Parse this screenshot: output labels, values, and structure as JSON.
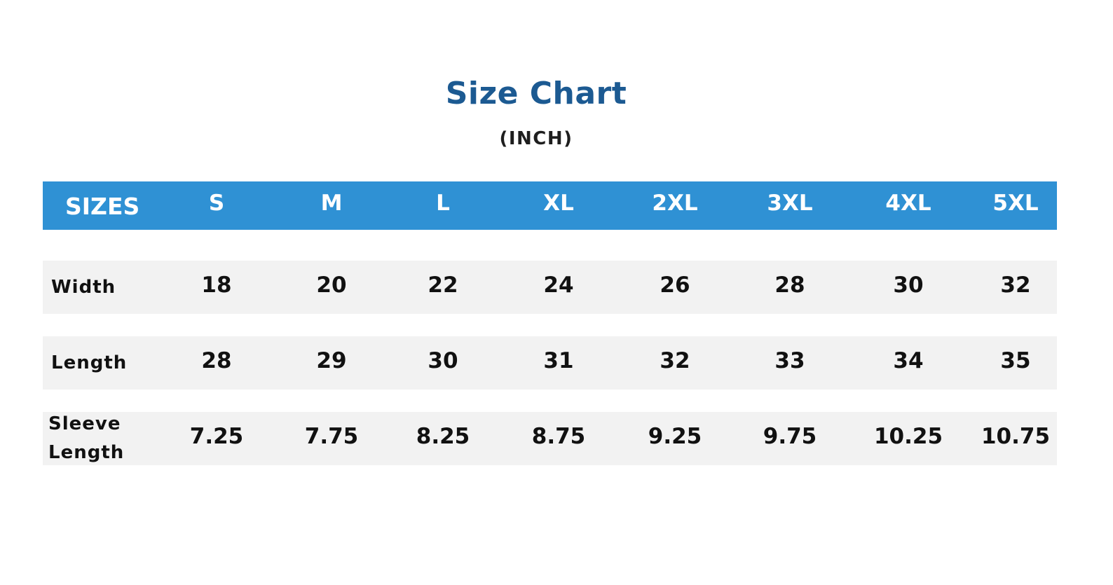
{
  "title": "Size Chart",
  "unit": "(INCH)",
  "colors": {
    "title": "#1c5a92",
    "header_bg": "#2f91d4",
    "header_text": "#ffffff",
    "row_bg": "#f2f2f2",
    "body_text": "#111111"
  },
  "table": {
    "header": [
      "SIZES",
      "S",
      "M",
      "L",
      "XL",
      "2XL",
      "3XL",
      "4XL",
      "5XL"
    ],
    "rows": [
      {
        "label": "Width",
        "values": [
          "18",
          "20",
          "22",
          "24",
          "26",
          "28",
          "30",
          "32"
        ]
      },
      {
        "label": "Length",
        "values": [
          "28",
          "29",
          "30",
          "31",
          "32",
          "33",
          "34",
          "35"
        ]
      },
      {
        "label": "Sleeve Length",
        "values": [
          "7.25",
          "7.75",
          "8.25",
          "8.75",
          "9.25",
          "9.75",
          "10.25",
          "10.75"
        ]
      }
    ]
  },
  "chart_data": {
    "type": "table",
    "title": "Size Chart",
    "subtitle": "(INCH)",
    "columns": [
      "SIZES",
      "S",
      "M",
      "L",
      "XL",
      "2XL",
      "3XL",
      "4XL",
      "5XL"
    ],
    "rows": [
      [
        "Width",
        18,
        20,
        22,
        24,
        26,
        28,
        30,
        32
      ],
      [
        "Length",
        28,
        29,
        30,
        31,
        32,
        33,
        34,
        35
      ],
      [
        "Sleeve Length",
        7.25,
        7.75,
        8.25,
        8.75,
        9.25,
        9.75,
        10.25,
        10.75
      ]
    ]
  }
}
